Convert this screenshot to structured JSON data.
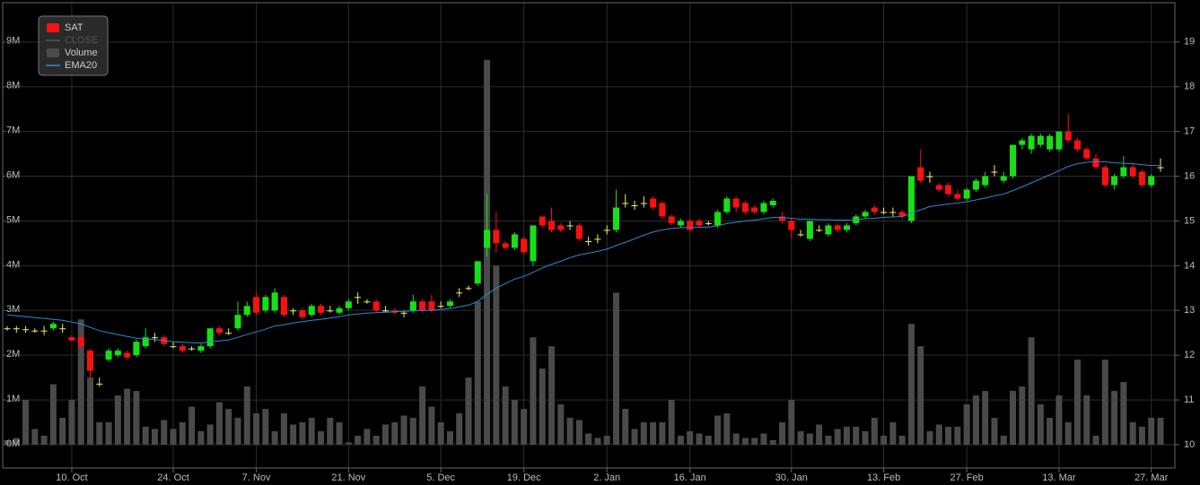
{
  "chart_data": {
    "type": "candlestick",
    "categories": [
      null,
      null,
      null,
      null,
      null,
      null,
      null,
      "10. Oct",
      null,
      null,
      null,
      null,
      null,
      null,
      null,
      null,
      null,
      null,
      "24. Oct",
      null,
      null,
      null,
      null,
      null,
      null,
      null,
      null,
      "7. Nov",
      null,
      null,
      null,
      null,
      null,
      null,
      null,
      null,
      null,
      "21. Nov",
      null,
      null,
      null,
      null,
      null,
      null,
      null,
      null,
      null,
      "5. Dec",
      null,
      null,
      null,
      null,
      null,
      null,
      null,
      null,
      "19. Dec",
      null,
      null,
      null,
      null,
      null,
      null,
      null,
      null,
      "2. Jan",
      null,
      null,
      null,
      null,
      null,
      null,
      null,
      null,
      "16. Jan",
      null,
      null,
      null,
      null,
      null,
      null,
      null,
      null,
      null,
      null,
      "30. Jan",
      null,
      null,
      null,
      null,
      null,
      null,
      null,
      null,
      null,
      "13. Feb",
      null,
      null,
      null,
      null,
      null,
      null,
      null,
      null,
      "27. Feb",
      null,
      null,
      null,
      null,
      null,
      null,
      null,
      null,
      null,
      "13. Mar",
      null,
      null,
      null,
      null,
      null,
      null,
      null,
      null,
      null,
      "27. Mar",
      null
    ],
    "ylim": [
      -0.521,
      9.878
    ],
    "yticks": [
      {
        "value": 0,
        "label": "0M"
      },
      {
        "value": 1,
        "label": "1M"
      },
      {
        "value": 2,
        "label": "2M"
      },
      {
        "value": 3,
        "label": "3M"
      },
      {
        "value": 4,
        "label": "4M"
      },
      {
        "value": 5,
        "label": "5M"
      },
      {
        "value": 6,
        "label": "6M"
      },
      {
        "value": 7,
        "label": "7M"
      },
      {
        "value": 8,
        "label": "8M"
      },
      {
        "value": 9,
        "label": "9M"
      }
    ],
    "y2lim": [
      9.479,
      19.878
    ],
    "y2ticks": [
      10,
      11,
      12,
      13,
      14,
      15,
      16,
      17,
      18,
      19
    ],
    "grid": true,
    "legend": "top-left",
    "series": [
      {
        "name": "SAT",
        "type": "candlestick",
        "axis": "y2",
        "up_color": "#18e018",
        "down_color": "#ff1010",
        "doji_color": "#f0f060",
        "ohlc": [
          [
            12.6,
            12.65,
            12.55,
            12.6
          ],
          [
            12.6,
            12.65,
            12.5,
            12.6
          ],
          [
            12.58,
            12.65,
            12.5,
            12.58
          ],
          [
            12.55,
            12.6,
            12.5,
            12.55
          ],
          [
            12.55,
            12.65,
            12.45,
            12.55
          ],
          [
            12.6,
            12.75,
            12.55,
            12.7
          ],
          [
            12.6,
            12.7,
            12.5,
            12.6
          ],
          [
            12.4,
            12.45,
            12.3,
            12.33
          ],
          [
            12.4,
            12.45,
            12.15,
            12.2
          ],
          [
            12.1,
            12.15,
            11.5,
            11.65
          ],
          [
            11.36,
            11.5,
            11.3,
            11.36
          ],
          [
            11.9,
            12.15,
            11.85,
            12.1
          ],
          [
            12.0,
            12.15,
            11.95,
            12.1
          ],
          [
            12.05,
            12.1,
            11.9,
            11.95
          ],
          [
            12.0,
            12.35,
            11.95,
            12.3
          ],
          [
            12.2,
            12.6,
            12.15,
            12.4
          ],
          [
            12.4,
            12.5,
            12.3,
            12.4
          ],
          [
            12.4,
            12.45,
            12.2,
            12.25
          ],
          [
            12.2,
            12.3,
            12.15,
            12.2
          ],
          [
            12.2,
            12.25,
            12.05,
            12.1
          ],
          [
            12.15,
            12.2,
            12.1,
            12.15
          ],
          [
            12.1,
            12.25,
            12.05,
            12.2
          ],
          [
            12.2,
            12.6,
            12.15,
            12.6
          ],
          [
            12.6,
            12.65,
            12.45,
            12.5
          ],
          [
            12.5,
            12.6,
            12.45,
            12.5
          ],
          [
            12.6,
            13.2,
            12.55,
            12.9
          ],
          [
            12.9,
            13.2,
            12.85,
            13.1
          ],
          [
            13.3,
            13.4,
            12.9,
            12.95
          ],
          [
            13.0,
            13.35,
            12.95,
            13.3
          ],
          [
            13.0,
            13.5,
            12.95,
            13.4
          ],
          [
            13.3,
            13.35,
            12.85,
            12.9
          ],
          [
            13.0,
            13.05,
            12.9,
            13.0
          ],
          [
            13.0,
            13.05,
            12.8,
            12.85
          ],
          [
            12.9,
            13.15,
            12.85,
            13.1
          ],
          [
            13.1,
            13.15,
            12.9,
            12.95
          ],
          [
            13.0,
            13.1,
            12.95,
            13.0
          ],
          [
            12.95,
            13.1,
            12.9,
            13.05
          ],
          [
            13.05,
            13.25,
            13.0,
            13.2
          ],
          [
            13.3,
            13.4,
            13.15,
            13.3
          ],
          [
            13.2,
            13.25,
            13.15,
            13.2
          ],
          [
            13.2,
            13.25,
            12.95,
            13.0
          ],
          [
            13.0,
            13.1,
            12.95,
            13.0
          ],
          [
            13.0,
            13.05,
            12.9,
            12.95
          ],
          [
            12.95,
            13.0,
            12.85,
            12.95
          ],
          [
            13.0,
            13.35,
            12.95,
            13.2
          ],
          [
            13.2,
            13.25,
            12.95,
            13.0
          ],
          [
            13.2,
            13.35,
            12.95,
            13.0
          ],
          [
            13.1,
            13.2,
            13.05,
            13.1
          ],
          [
            13.1,
            13.25,
            13.05,
            13.2
          ],
          [
            13.4,
            13.5,
            13.3,
            13.4
          ],
          [
            13.5,
            13.55,
            13.45,
            13.5
          ],
          [
            13.6,
            14.1,
            13.55,
            14.1
          ],
          [
            14.4,
            15.6,
            14.2,
            14.8
          ],
          [
            14.8,
            15.2,
            14.3,
            14.5
          ],
          [
            14.5,
            14.55,
            14.35,
            14.4
          ],
          [
            14.4,
            14.75,
            14.35,
            14.7
          ],
          [
            14.6,
            14.65,
            14.25,
            14.3
          ],
          [
            14.1,
            14.9,
            14.0,
            14.9
          ],
          [
            15.1,
            15.1,
            14.85,
            14.9
          ],
          [
            15.0,
            15.3,
            14.75,
            14.8
          ],
          [
            14.9,
            14.95,
            14.75,
            14.8
          ],
          [
            14.9,
            15.0,
            14.8,
            14.9
          ],
          [
            14.9,
            14.95,
            14.55,
            14.6
          ],
          [
            14.55,
            14.65,
            14.45,
            14.55
          ],
          [
            14.6,
            14.7,
            14.5,
            14.6
          ],
          [
            14.8,
            14.9,
            14.7,
            14.8
          ],
          [
            14.8,
            15.7,
            14.75,
            15.3
          ],
          [
            15.4,
            15.6,
            15.3,
            15.4
          ],
          [
            15.35,
            15.45,
            15.25,
            15.35
          ],
          [
            15.4,
            15.55,
            15.3,
            15.4
          ],
          [
            15.5,
            15.55,
            15.25,
            15.3
          ],
          [
            15.4,
            15.45,
            15.05,
            15.1
          ],
          [
            15.1,
            15.15,
            14.9,
            14.95
          ],
          [
            14.9,
            15.05,
            14.85,
            15.0
          ],
          [
            15.0,
            15.05,
            14.75,
            14.8
          ],
          [
            15.0,
            15.05,
            14.85,
            14.9
          ],
          [
            14.95,
            15.0,
            14.9,
            14.95
          ],
          [
            14.9,
            15.25,
            14.85,
            15.2
          ],
          [
            15.2,
            15.55,
            15.15,
            15.5
          ],
          [
            15.5,
            15.55,
            15.2,
            15.3
          ],
          [
            15.4,
            15.45,
            15.15,
            15.2
          ],
          [
            15.3,
            15.35,
            15.15,
            15.2
          ],
          [
            15.2,
            15.45,
            15.15,
            15.4
          ],
          [
            15.35,
            15.5,
            15.3,
            15.45
          ],
          [
            15.1,
            15.2,
            14.95,
            15.0
          ],
          [
            15.0,
            15.05,
            14.6,
            14.8
          ],
          [
            14.7,
            14.8,
            14.65,
            14.7
          ],
          [
            14.6,
            15.0,
            14.55,
            15.0
          ],
          [
            14.8,
            14.9,
            14.75,
            14.8
          ],
          [
            14.7,
            14.95,
            14.65,
            14.9
          ],
          [
            14.9,
            14.95,
            14.75,
            14.8
          ],
          [
            14.8,
            14.95,
            14.75,
            14.9
          ],
          [
            14.95,
            15.15,
            14.9,
            15.1
          ],
          [
            15.1,
            15.25,
            15.05,
            15.2
          ],
          [
            15.3,
            15.35,
            15.15,
            15.2
          ],
          [
            15.2,
            15.3,
            15.15,
            15.2
          ],
          [
            15.2,
            15.3,
            15.1,
            15.2
          ],
          [
            15.2,
            15.25,
            15.05,
            15.1
          ],
          [
            15.0,
            16.0,
            14.95,
            16.0
          ],
          [
            16.2,
            16.6,
            15.85,
            15.9
          ],
          [
            16.0,
            16.1,
            15.85,
            16.0
          ],
          [
            15.8,
            15.85,
            15.65,
            15.7
          ],
          [
            15.8,
            15.85,
            15.55,
            15.6
          ],
          [
            15.6,
            15.7,
            15.45,
            15.5
          ],
          [
            15.5,
            15.75,
            15.45,
            15.7
          ],
          [
            15.7,
            15.95,
            15.65,
            15.9
          ],
          [
            15.8,
            16.1,
            15.75,
            16.0
          ],
          [
            16.1,
            16.25,
            16.0,
            16.1
          ],
          [
            15.9,
            16.1,
            15.85,
            16.0
          ],
          [
            16.0,
            16.7,
            15.95,
            16.7
          ],
          [
            16.7,
            16.85,
            16.6,
            16.8
          ],
          [
            16.6,
            16.95,
            16.5,
            16.9
          ],
          [
            16.7,
            16.95,
            16.65,
            16.9
          ],
          [
            16.6,
            16.95,
            16.55,
            16.9
          ],
          [
            16.6,
            17.0,
            16.55,
            17.0
          ],
          [
            17.0,
            17.4,
            16.75,
            16.8
          ],
          [
            16.8,
            16.85,
            16.55,
            16.6
          ],
          [
            16.6,
            16.65,
            16.35,
            16.4
          ],
          [
            16.4,
            16.5,
            16.15,
            16.2
          ],
          [
            16.2,
            16.25,
            15.75,
            15.8
          ],
          [
            15.8,
            16.05,
            15.7,
            16.0
          ],
          [
            16.0,
            16.45,
            15.95,
            16.2
          ],
          [
            16.2,
            16.3,
            15.95,
            16.0
          ],
          [
            16.1,
            16.15,
            15.75,
            15.8
          ],
          [
            15.8,
            16.05,
            15.75,
            16.0
          ],
          [
            16.2,
            16.4,
            16.1,
            16.2
          ]
        ]
      },
      {
        "name": "CLOSE",
        "color": "#555555",
        "visible": false
      },
      {
        "name": "Volume",
        "color": "#4a4a4a",
        "values": [
          0.1,
          0.15,
          1.0,
          0.35,
          0.2,
          1.35,
          0.6,
          1.0,
          2.8,
          1.5,
          0.5,
          0.5,
          1.1,
          1.25,
          1.2,
          0.4,
          0.35,
          0.55,
          0.35,
          0.5,
          0.85,
          0.3,
          0.45,
          0.95,
          0.8,
          0.6,
          1.3,
          0.7,
          0.8,
          0.3,
          0.7,
          0.45,
          0.5,
          0.6,
          0.3,
          0.6,
          0.5,
          0.05,
          0.2,
          0.35,
          0.2,
          0.45,
          0.5,
          0.65,
          0.6,
          1.3,
          0.85,
          0.5,
          0.3,
          0.7,
          1.5,
          3.2,
          8.6,
          4.0,
          1.3,
          1.0,
          0.8,
          2.4,
          1.7,
          2.2,
          0.9,
          0.6,
          0.55,
          0.25,
          0.15,
          0.2,
          3.4,
          0.8,
          0.35,
          0.5,
          0.5,
          0.5,
          1.0,
          0.2,
          0.3,
          0.25,
          0.2,
          0.65,
          0.7,
          0.25,
          0.15,
          0.15,
          0.25,
          0.1,
          0.5,
          1.0,
          0.3,
          0.25,
          0.45,
          0.2,
          0.35,
          0.4,
          0.4,
          0.3,
          0.6,
          0.2,
          0.5,
          0.2,
          2.7,
          2.2,
          0.3,
          0.45,
          0.4,
          0.4,
          0.9,
          1.1,
          1.2,
          0.6,
          0.2,
          1.2,
          1.3,
          2.4,
          0.9,
          0.6,
          1.1,
          0.5,
          1.9,
          1.1,
          0.2,
          1.9,
          1.2,
          1.4,
          0.5,
          0.4,
          0.6,
          0.6
        ]
      },
      {
        "name": "EMA20",
        "color": "#2a8ad4",
        "axis": "y2",
        "values": [
          12.9,
          12.88,
          12.86,
          12.84,
          12.82,
          12.8,
          12.78,
          12.74,
          12.7,
          12.62,
          12.55,
          12.5,
          12.46,
          12.42,
          12.38,
          12.36,
          12.35,
          12.33,
          12.3,
          12.29,
          12.28,
          12.27,
          12.3,
          12.32,
          12.34,
          12.4,
          12.46,
          12.52,
          12.58,
          12.65,
          12.68,
          12.72,
          12.75,
          12.78,
          12.8,
          12.83,
          12.86,
          12.9,
          12.92,
          12.94,
          12.95,
          12.96,
          12.97,
          12.98,
          12.99,
          13.0,
          13.0,
          13.02,
          13.04,
          13.08,
          13.12,
          13.2,
          13.36,
          13.5,
          13.6,
          13.7,
          13.76,
          13.85,
          13.95,
          14.03,
          14.1,
          14.18,
          14.24,
          14.28,
          14.32,
          14.37,
          14.45,
          14.52,
          14.6,
          14.68,
          14.75,
          14.8,
          14.83,
          14.85,
          14.85,
          14.86,
          14.86,
          14.89,
          14.94,
          14.97,
          15.0,
          15.02,
          15.05,
          15.08,
          15.08,
          15.06,
          15.04,
          15.04,
          15.03,
          15.03,
          15.02,
          15.02,
          15.03,
          15.05,
          15.06,
          15.08,
          15.09,
          15.1,
          15.18,
          15.25,
          15.32,
          15.35,
          15.38,
          15.4,
          15.43,
          15.47,
          15.51,
          15.56,
          15.6,
          15.68,
          15.76,
          15.85,
          15.94,
          16.03,
          16.12,
          16.22,
          16.28,
          16.31,
          16.33,
          16.32,
          16.3,
          16.29,
          16.28,
          16.26,
          16.24,
          16.24
        ]
      }
    ]
  }
}
